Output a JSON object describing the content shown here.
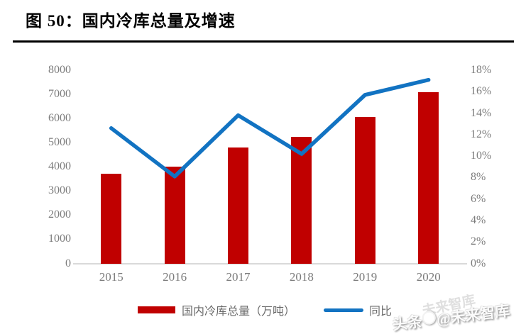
{
  "title": {
    "text": "图 50：国内冷库总量及增速"
  },
  "chart_data": {
    "type": "bar",
    "subtype": "bar-line-combo",
    "title": "图 50：国内冷库总量及增速",
    "categories": [
      "2015",
      "2016",
      "2017",
      "2018",
      "2019",
      "2020"
    ],
    "series": [
      {
        "name": "国内冷库总量（万吨）",
        "kind": "bar",
        "axis": "left",
        "color": "#c00000",
        "values": [
          3700,
          4000,
          4800,
          5250,
          6050,
          7100
        ]
      },
      {
        "name": "同比",
        "kind": "line",
        "axis": "right",
        "color": "#1273c2",
        "values": [
          12.6,
          8.1,
          13.8,
          10.2,
          15.7,
          17.1
        ]
      }
    ],
    "left_axis": {
      "min": 0,
      "max": 8000,
      "step": 1000,
      "tick_labels": [
        "0",
        "1000",
        "2000",
        "3000",
        "4000",
        "5000",
        "6000",
        "7000",
        "8000"
      ]
    },
    "right_axis": {
      "min": 0,
      "max": 18,
      "step": 2,
      "tick_labels": [
        "0%",
        "2%",
        "4%",
        "6%",
        "8%",
        "10%",
        "12%",
        "14%",
        "16%",
        "18%"
      ]
    },
    "grid": false,
    "legend_position": "bottom"
  },
  "legend": {
    "items": [
      {
        "label": "国内冷库总量（万吨）",
        "swatch": "bar",
        "color": "#c00000"
      },
      {
        "label": "同比",
        "swatch": "line",
        "color": "#1273c2"
      }
    ]
  },
  "watermark": {
    "ghost_text": "未来智库",
    "badge_prefix": "头条",
    "badge_suffix": "@未来智库"
  },
  "colors": {
    "bar": "#c00000",
    "line": "#1273c2",
    "axis_text": "#7c7c7c",
    "axis_line": "#d9d9d9",
    "title_text": "#000000"
  }
}
